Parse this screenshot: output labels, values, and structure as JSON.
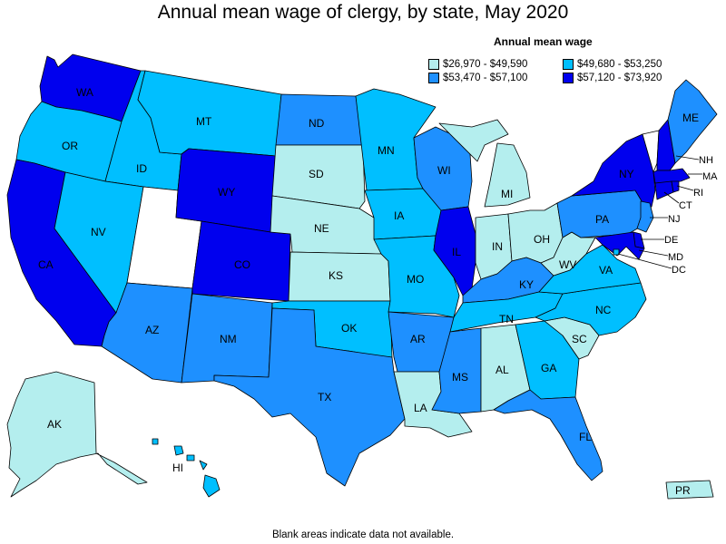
{
  "title": "Annual mean wage of clergy, by state, May 2020",
  "legend": {
    "title": "Annual mean wage",
    "items": [
      {
        "range": "$26,970 - $49,590",
        "color": "#b4eeee"
      },
      {
        "range": "$49,680 - $53,250",
        "color": "#00bfff"
      },
      {
        "range": "$53,470 - $57,100",
        "color": "#1e90ff"
      },
      {
        "range": "$57,120 - $73,920",
        "color": "#0000ee"
      }
    ],
    "no_data_color": "#ffffff"
  },
  "footnote": "Blank areas indicate data not available.",
  "states": {
    "WA": {
      "label": "WA",
      "bin": 3
    },
    "OR": {
      "label": "OR",
      "bin": 1
    },
    "CA": {
      "label": "CA",
      "bin": 3
    },
    "ID": {
      "label": "ID",
      "bin": 1
    },
    "NV": {
      "label": "NV",
      "bin": 1
    },
    "UT": {
      "label": "",
      "bin": -1
    },
    "AZ": {
      "label": "AZ",
      "bin": 2
    },
    "MT": {
      "label": "MT",
      "bin": 1
    },
    "WY": {
      "label": "WY",
      "bin": 3
    },
    "CO": {
      "label": "CO",
      "bin": 3
    },
    "NM": {
      "label": "NM",
      "bin": 2
    },
    "ND": {
      "label": "ND",
      "bin": 2
    },
    "SD": {
      "label": "SD",
      "bin": 0
    },
    "NE": {
      "label": "NE",
      "bin": 0
    },
    "KS": {
      "label": "KS",
      "bin": 0
    },
    "OK": {
      "label": "OK",
      "bin": 1
    },
    "TX": {
      "label": "TX",
      "bin": 2
    },
    "MN": {
      "label": "MN",
      "bin": 1
    },
    "IA": {
      "label": "IA",
      "bin": 1
    },
    "MO": {
      "label": "MO",
      "bin": 1
    },
    "AR": {
      "label": "AR",
      "bin": 2
    },
    "LA": {
      "label": "LA",
      "bin": 0
    },
    "WI": {
      "label": "WI",
      "bin": 2
    },
    "IL": {
      "label": "IL",
      "bin": 3
    },
    "MI": {
      "label": "MI",
      "bin": 0
    },
    "IN": {
      "label": "IN",
      "bin": 0
    },
    "OH": {
      "label": "OH",
      "bin": 0
    },
    "KY": {
      "label": "KY",
      "bin": 2
    },
    "TN": {
      "label": "TN",
      "bin": 1
    },
    "MS": {
      "label": "MS",
      "bin": 2
    },
    "AL": {
      "label": "AL",
      "bin": 0
    },
    "GA": {
      "label": "GA",
      "bin": 1
    },
    "FL": {
      "label": "FL",
      "bin": 2
    },
    "SC": {
      "label": "SC",
      "bin": 0
    },
    "NC": {
      "label": "NC",
      "bin": 1
    },
    "VA": {
      "label": "VA",
      "bin": 1
    },
    "WV": {
      "label": "WV",
      "bin": 0
    },
    "PA": {
      "label": "PA",
      "bin": 2
    },
    "NY": {
      "label": "NY",
      "bin": 3
    },
    "ME": {
      "label": "ME",
      "bin": 2
    },
    "VT": {
      "label": "",
      "bin": -1
    },
    "NH": {
      "label": "NH",
      "bin": 3
    },
    "MA": {
      "label": "MA",
      "bin": 3
    },
    "RI": {
      "label": "RI",
      "bin": 3
    },
    "CT": {
      "label": "CT",
      "bin": 3
    },
    "NJ": {
      "label": "NJ",
      "bin": 2
    },
    "DE": {
      "label": "DE",
      "bin": 3
    },
    "MD": {
      "label": "MD",
      "bin": 3
    },
    "DC": {
      "label": "DC",
      "bin": 1
    },
    "AK": {
      "label": "AK",
      "bin": 0
    },
    "HI": {
      "label": "HI",
      "bin": 1
    },
    "PR": {
      "label": "PR",
      "bin": 0
    }
  }
}
